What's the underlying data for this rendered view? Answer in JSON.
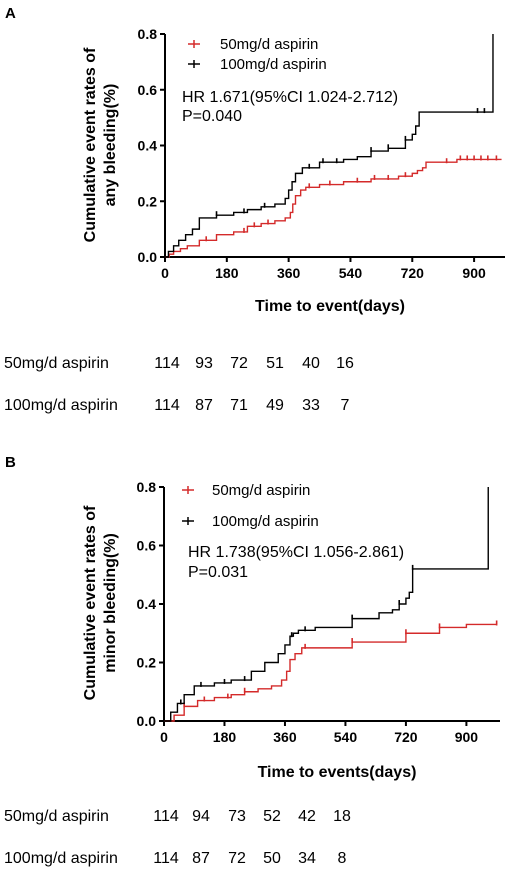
{
  "colors": {
    "low_dose": "#d42a2a",
    "high_dose": "#000000"
  },
  "chart_data": [
    {
      "type": "line",
      "panel": "A",
      "ylabel_line1": "Cumulative event rates of",
      "ylabel_line2": "any bleeding(%)",
      "xlabel": "Time to event(days)",
      "xlim": [
        0,
        990
      ],
      "ylim": [
        0,
        0.8
      ],
      "xticks": [
        "0",
        "180",
        "360",
        "540",
        "720",
        "900"
      ],
      "yticks": [
        "0.0",
        "0.2",
        "0.4",
        "0.6",
        "0.8"
      ],
      "stats_hr": "HR 1.671(95%CI 1.024-2.712)",
      "stats_p": "P=0.040",
      "series": [
        {
          "name": "50mg/d aspirin",
          "x": [
            0,
            12,
            25,
            45,
            65,
            100,
            150,
            200,
            240,
            280,
            320,
            350,
            365,
            372,
            380,
            395,
            410,
            450,
            520,
            600,
            680,
            720,
            735,
            750,
            760,
            800,
            850,
            900,
            980
          ],
          "y": [
            0,
            0.01,
            0.02,
            0.03,
            0.04,
            0.06,
            0.08,
            0.09,
            0.11,
            0.12,
            0.13,
            0.14,
            0.16,
            0.19,
            0.22,
            0.24,
            0.25,
            0.26,
            0.27,
            0.28,
            0.29,
            0.3,
            0.31,
            0.32,
            0.34,
            0.34,
            0.35,
            0.35,
            0.35
          ],
          "censor_x": [
            120,
            230,
            260,
            300,
            420,
            480,
            560,
            610,
            650,
            700,
            820,
            860,
            880,
            900,
            920,
            940,
            965
          ],
          "risk_counts": [
            "114",
            "93",
            "72",
            "51",
            "40",
            "16"
          ]
        },
        {
          "name": "100mg/d aspirin",
          "x": [
            0,
            10,
            25,
            40,
            60,
            80,
            100,
            150,
            200,
            240,
            280,
            320,
            350,
            360,
            370,
            380,
            400,
            450,
            520,
            560,
            600,
            650,
            700,
            720,
            730,
            740,
            800,
            900,
            950,
            955
          ],
          "y": [
            0,
            0.02,
            0.04,
            0.06,
            0.08,
            0.1,
            0.14,
            0.15,
            0.16,
            0.17,
            0.18,
            0.19,
            0.21,
            0.24,
            0.27,
            0.3,
            0.32,
            0.34,
            0.35,
            0.36,
            0.38,
            0.39,
            0.42,
            0.44,
            0.47,
            0.52,
            0.52,
            0.52,
            0.52,
            0.8
          ],
          "censor_x": [
            150,
            230,
            290,
            420,
            460,
            500,
            600,
            650,
            700,
            910,
            930
          ],
          "risk_counts": [
            "114",
            "87",
            "71",
            "49",
            "33",
            "7"
          ]
        }
      ],
      "risk_table_x": [
        0,
        180,
        360,
        540,
        720,
        900
      ]
    },
    {
      "type": "line",
      "panel": "B",
      "ylabel_line1": "Cumulative event rates of",
      "ylabel_line2": "minor bleeding(%)",
      "xlabel": "Time to events(days)",
      "xlim": [
        0,
        1000
      ],
      "ylim": [
        0,
        0.8
      ],
      "xticks": [
        "0",
        "180",
        "360",
        "540",
        "720",
        "900"
      ],
      "yticks": [
        "0.0",
        "0.2",
        "0.4",
        "0.6",
        "0.8"
      ],
      "stats_hr": "HR 1.738(95%CI 1.056-2.861)",
      "stats_p": "P=0.031",
      "series": [
        {
          "name": "50mg/d aspirin",
          "x": [
            0,
            30,
            60,
            100,
            150,
            200,
            240,
            280,
            320,
            350,
            365,
            375,
            390,
            410,
            450,
            560,
            720,
            820,
            900,
            990
          ],
          "y": [
            0,
            0.02,
            0.05,
            0.07,
            0.08,
            0.09,
            0.1,
            0.11,
            0.12,
            0.14,
            0.17,
            0.21,
            0.23,
            0.25,
            0.25,
            0.27,
            0.3,
            0.32,
            0.33,
            0.33
          ],
          "censor_x": [
            60,
            120,
            190,
            240,
            420,
            560,
            720,
            820,
            990
          ],
          "risk_counts": [
            "114",
            "94",
            "73",
            "52",
            "42",
            "18"
          ]
        },
        {
          "name": "100mg/d aspirin",
          "x": [
            0,
            20,
            40,
            60,
            90,
            150,
            200,
            260,
            300,
            340,
            360,
            375,
            385,
            400,
            450,
            560,
            640,
            680,
            700,
            720,
            730,
            740,
            960,
            965
          ],
          "y": [
            0,
            0.03,
            0.06,
            0.09,
            0.12,
            0.13,
            0.14,
            0.17,
            0.2,
            0.23,
            0.26,
            0.29,
            0.3,
            0.31,
            0.32,
            0.35,
            0.37,
            0.38,
            0.4,
            0.42,
            0.44,
            0.52,
            0.52,
            0.8
          ],
          "censor_x": [
            50,
            110,
            180,
            240,
            380,
            420,
            560,
            700,
            740
          ],
          "risk_counts": [
            "114",
            "87",
            "72",
            "50",
            "34",
            "8"
          ]
        }
      ],
      "risk_table_x": [
        0,
        180,
        360,
        540,
        720,
        900
      ]
    }
  ]
}
